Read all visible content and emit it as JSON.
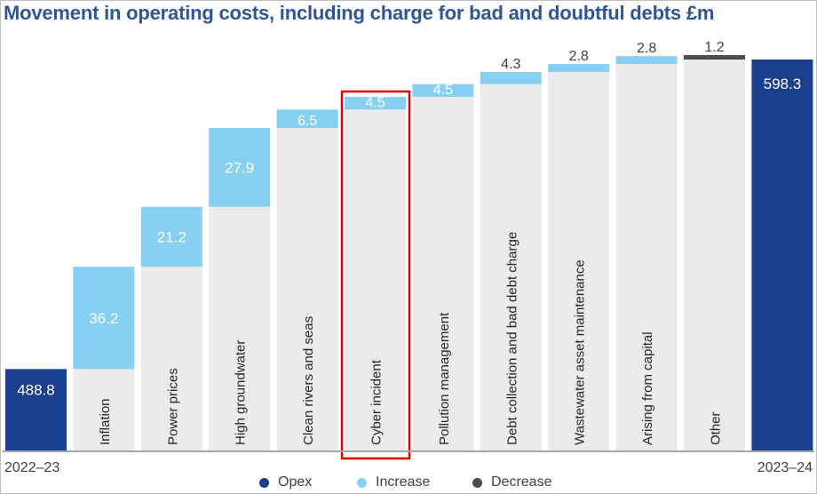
{
  "chart_data": {
    "type": "bar",
    "title": "Movement in operating costs, including charge for bad and doubtful debts £m",
    "start": {
      "label": "2022–23",
      "value": 488.8,
      "value_label": "488.8"
    },
    "end": {
      "label": "2023–24",
      "value": 598.3,
      "value_label": "598.3"
    },
    "steps": [
      {
        "name": "Inflation",
        "value": 36.2,
        "value_label": "36.2",
        "kind": "increase"
      },
      {
        "name": "Power prices",
        "value": 21.2,
        "value_label": "21.2",
        "kind": "increase"
      },
      {
        "name": "High groundwater",
        "value": 27.9,
        "value_label": "27.9",
        "kind": "increase"
      },
      {
        "name": "Clean rivers and seas",
        "value": 6.5,
        "value_label": "6.5",
        "kind": "increase"
      },
      {
        "name": "Cyber incident",
        "value": 4.5,
        "value_label": "4.5",
        "kind": "increase",
        "highlighted": true
      },
      {
        "name": "Pollution management",
        "value": 4.5,
        "value_label": "4.5",
        "kind": "increase"
      },
      {
        "name": "Debt collection and bad debt charge",
        "value": 4.3,
        "value_label": "4.3",
        "kind": "increase"
      },
      {
        "name": "Wastewater asset maintenance",
        "value": 2.8,
        "value_label": "2.8",
        "kind": "increase"
      },
      {
        "name": "Arising from capital",
        "value": 2.8,
        "value_label": "2.8",
        "kind": "increase"
      },
      {
        "name": "Other",
        "value": 1.2,
        "value_label": "1.2",
        "kind": "decrease"
      }
    ],
    "legend": [
      {
        "name": "Opex",
        "color": "#1b3f8f"
      },
      {
        "name": "Increase",
        "color": "#87d0f2"
      },
      {
        "name": "Decrease",
        "color": "#4d4d4d"
      }
    ],
    "legend_position": "bottom",
    "colors": {
      "opex": "#1b3f8f",
      "increase": "#87d0f2",
      "decrease": "#4d4d4d",
      "background_bar": "#ebebeb",
      "highlight": "#e00000"
    }
  }
}
